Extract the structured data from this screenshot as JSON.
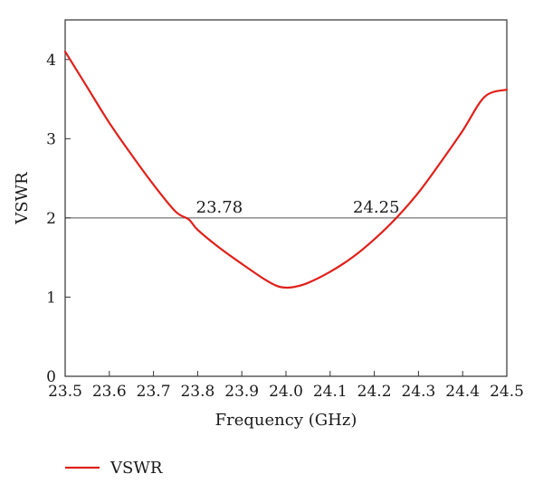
{
  "chart_data": {
    "type": "line",
    "xlabel": "Frequency (GHz)",
    "ylabel": "VSWR",
    "xlim": [
      23.5,
      24.5
    ],
    "ylim": [
      0,
      4.5
    ],
    "xticks": [
      "23.5",
      "23.6",
      "23.7",
      "23.8",
      "23.9",
      "24.0",
      "24.1",
      "24.2",
      "24.3",
      "24.4",
      "24.5"
    ],
    "yticks": [
      "0",
      "1",
      "2",
      "3",
      "4"
    ],
    "grid": false,
    "legend_position": "bottom-left",
    "reference_line": {
      "y": 2,
      "color": "#777777"
    },
    "series": [
      {
        "name": "VSWR",
        "color": "#e0201b",
        "x": [
          23.5,
          23.55,
          23.6,
          23.65,
          23.7,
          23.75,
          23.78,
          23.8,
          23.85,
          23.9,
          23.95,
          23.98,
          24.0,
          24.02,
          24.05,
          24.1,
          24.15,
          24.2,
          24.25,
          24.3,
          24.35,
          24.4,
          24.45,
          24.5
        ],
        "y": [
          4.1,
          3.65,
          3.2,
          2.8,
          2.42,
          2.08,
          1.98,
          1.85,
          1.62,
          1.42,
          1.23,
          1.14,
          1.12,
          1.13,
          1.18,
          1.32,
          1.5,
          1.73,
          2.0,
          2.32,
          2.7,
          3.1,
          3.53,
          3.62
        ]
      }
    ],
    "annotations": [
      {
        "text": "23.78",
        "x": 23.78,
        "y": 2
      },
      {
        "text": "24.25",
        "x": 24.25,
        "y": 2
      }
    ]
  }
}
